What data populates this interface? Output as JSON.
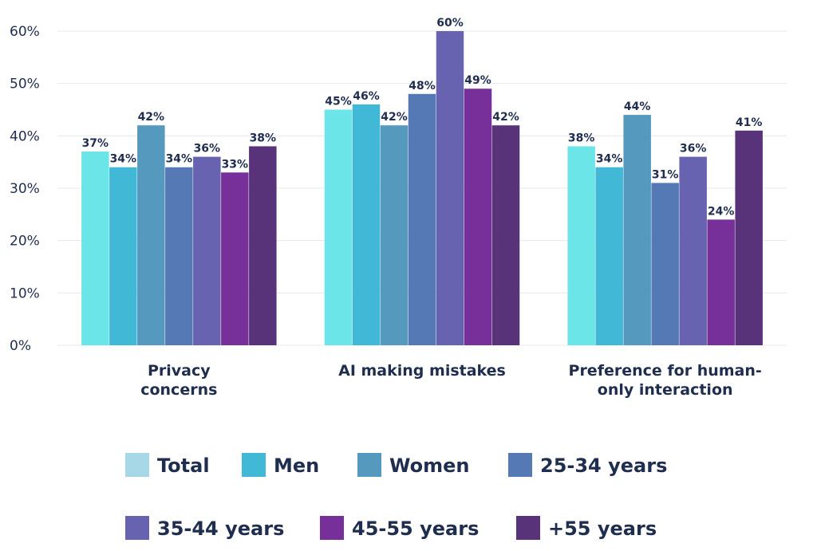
{
  "chart_data": {
    "type": "bar",
    "title": "",
    "xlabel": "",
    "ylabel": "",
    "ylim": [
      0,
      60
    ],
    "yticks": [
      0,
      10,
      20,
      30,
      40,
      50,
      60
    ],
    "ytick_labels": [
      "0%",
      "10%",
      "20%",
      "30%",
      "40%",
      "50%",
      "60%"
    ],
    "categories": [
      [
        "Privacy",
        "concerns"
      ],
      [
        "AI making mistakes"
      ],
      [
        "Preference for human-",
        "only interaction"
      ]
    ],
    "series": [
      {
        "name": "Total",
        "color": "#6ce5e8",
        "values": [
          37,
          45,
          38
        ],
        "labels": [
          "37%",
          "45%",
          "38%"
        ]
      },
      {
        "name": "Men",
        "color": "#41b8d5",
        "values": [
          34,
          46,
          34
        ],
        "labels": [
          "34%",
          "46%",
          "34%"
        ]
      },
      {
        "name": "Women",
        "color": "#5599bf",
        "values": [
          42,
          42,
          44
        ],
        "labels": [
          "42%",
          "42%",
          "44%"
        ]
      },
      {
        "name": "25-34 years",
        "color": "#5479b4",
        "values": [
          34,
          48,
          31
        ],
        "labels": [
          "34%",
          "48%",
          "31%"
        ]
      },
      {
        "name": "35-44 years",
        "color": "#6763b0",
        "values": [
          36,
          60,
          36
        ],
        "labels": [
          "36%",
          "60%",
          "36%"
        ]
      },
      {
        "name": "45-55 years",
        "color": "#772f9a",
        "values": [
          33,
          49,
          24
        ],
        "labels": [
          "33%",
          "49%",
          "24%"
        ]
      },
      {
        "name": "+55 years",
        "color": "#59337a",
        "values": [
          38,
          42,
          41
        ],
        "labels": [
          "38%",
          "42%",
          "41%"
        ]
      }
    ],
    "legend": {
      "position": "bottom",
      "total_swatch_color": "#a6d8e8"
    },
    "grid": true
  }
}
